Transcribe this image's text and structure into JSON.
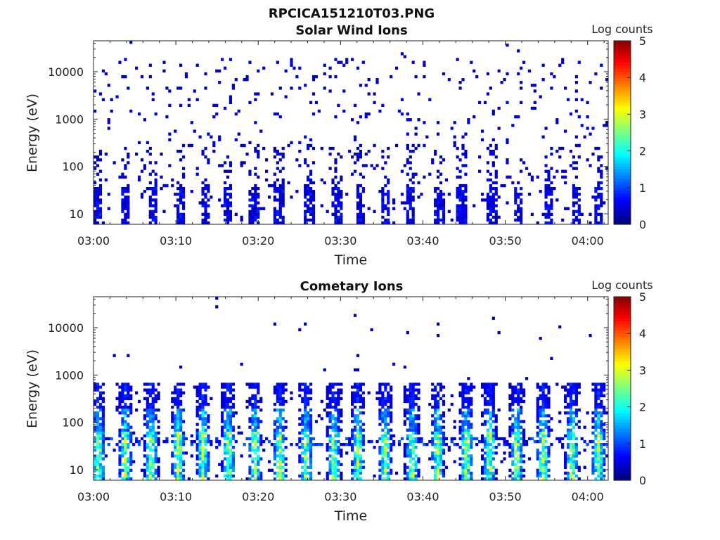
{
  "figure_title": "RPCICA151210T03.PNG",
  "colors": {
    "colormap": [
      "#00007f",
      "#0000ff",
      "#007fff",
      "#00ffff",
      "#7fff7f",
      "#ffff00",
      "#ff7f00",
      "#ff0000",
      "#7f0000"
    ]
  },
  "chart_data": [
    {
      "type": "heatmap",
      "title": "Solar Wind Ions",
      "xlabel": "Time",
      "ylabel": "Energy (eV)",
      "colorbar_label": "Log counts",
      "x_ticks": [
        "03:00",
        "03:10",
        "03:20",
        "03:30",
        "03:40",
        "03:50",
        "04:00"
      ],
      "x_range": [
        "03:00",
        "04:02"
      ],
      "y_ticks": [
        "10",
        "100",
        "1000",
        "10000"
      ],
      "y_range": [
        6,
        45000
      ],
      "y_scale": "log",
      "c_ticks": [
        "0",
        "1",
        "2",
        "3",
        "4",
        "5"
      ],
      "c_range": [
        0,
        5
      ],
      "description_seed": 11,
      "pattern": "sparse",
      "pulse_times_min": [
        0.5,
        3.8,
        7.2,
        10.6,
        13.5,
        16.3,
        19.5,
        22.5,
        26.2,
        29.6,
        32.4,
        35.4,
        38.5,
        42.0,
        44.7,
        48.4,
        51.5,
        55.3,
        58.6,
        61.3
      ]
    },
    {
      "type": "heatmap",
      "title": "Cometary Ions",
      "xlabel": "Time",
      "ylabel": "Energy (eV)",
      "colorbar_label": "Log counts",
      "x_ticks": [
        "03:00",
        "03:10",
        "03:20",
        "03:30",
        "03:40",
        "03:50",
        "04:00"
      ],
      "x_range": [
        "03:00",
        "04:02"
      ],
      "y_ticks": [
        "10",
        "100",
        "1000",
        "10000"
      ],
      "y_range": [
        6,
        45000
      ],
      "y_scale": "log",
      "c_ticks": [
        "0",
        "1",
        "2",
        "3",
        "4",
        "5"
      ],
      "c_range": [
        0,
        5
      ],
      "description_seed": 29,
      "pattern": "pulsed",
      "pulse_times_min": [
        0.6,
        3.9,
        7.0,
        10.3,
        13.3,
        16.4,
        19.6,
        22.6,
        25.8,
        29.2,
        32.1,
        35.4,
        38.7,
        41.8,
        45.3,
        48.1,
        51.4,
        54.6,
        58.1,
        61.3
      ]
    }
  ]
}
